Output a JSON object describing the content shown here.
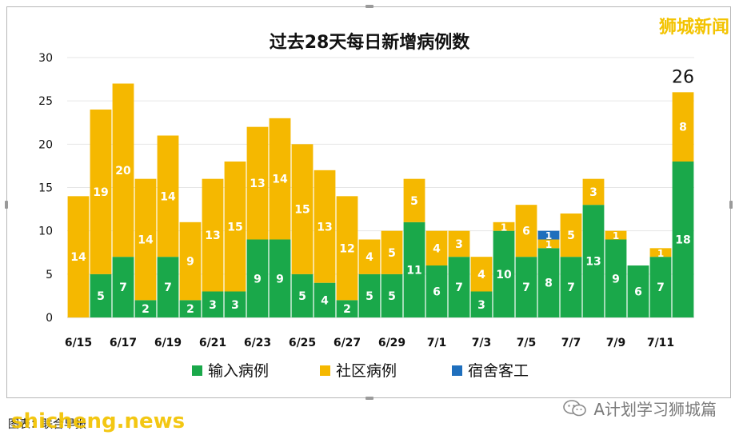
{
  "watermarks": {
    "top_right": "狮城新闻",
    "bottom_left": "shicheng.news",
    "wechat_account": "A计划学习狮城篇"
  },
  "footer_note": "图表：联合早报",
  "colors": {
    "imported": "#1aa84a",
    "community": "#f5b800",
    "dormitory": "#1f6fbd",
    "watermark": "#f3c300"
  },
  "chart_data": {
    "type": "bar",
    "stacked": true,
    "title": "过去28天每日新增病例数",
    "ylim": [
      0,
      30
    ],
    "yticks": [
      0,
      5,
      10,
      15,
      20,
      25,
      30
    ],
    "grid": true,
    "legend_position": "bottom",
    "categories": [
      "6/15",
      "6/16",
      "6/17",
      "6/18",
      "6/19",
      "6/20",
      "6/21",
      "6/22",
      "6/23",
      "6/24",
      "6/25",
      "6/26",
      "6/27",
      "6/28",
      "6/29",
      "6/30",
      "7/1",
      "7/2",
      "7/3",
      "7/4",
      "7/5",
      "7/6",
      "7/7",
      "7/8",
      "7/9",
      "7/10",
      "7/11",
      "7/12"
    ],
    "xtick_labels": [
      "6/15",
      "6/17",
      "6/19",
      "6/21",
      "6/23",
      "6/25",
      "6/27",
      "6/29",
      "7/1",
      "7/3",
      "7/5",
      "7/7",
      "7/9",
      "7/11"
    ],
    "series": [
      {
        "name": "输入病例",
        "color_key": "imported",
        "values": [
          0,
          5,
          7,
          2,
          7,
          2,
          3,
          3,
          9,
          9,
          5,
          4,
          2,
          5,
          5,
          11,
          6,
          7,
          3,
          10,
          7,
          8,
          7,
          13,
          9,
          6,
          7,
          18
        ]
      },
      {
        "name": "社区病例",
        "color_key": "community",
        "values": [
          14,
          19,
          20,
          14,
          14,
          9,
          13,
          15,
          13,
          14,
          15,
          13,
          12,
          4,
          5,
          5,
          4,
          3,
          4,
          1,
          6,
          1,
          5,
          3,
          1,
          0,
          1,
          8
        ]
      },
      {
        "name": "宿舍客工",
        "color_key": "dormitory",
        "values": [
          0,
          0,
          0,
          0,
          0,
          0,
          0,
          0,
          0,
          0,
          0,
          0,
          0,
          0,
          0,
          0,
          0,
          0,
          0,
          0,
          0,
          1,
          0,
          0,
          0,
          0,
          0,
          0
        ]
      }
    ],
    "annotations": [
      {
        "category": "7/12",
        "text": "26"
      }
    ]
  }
}
